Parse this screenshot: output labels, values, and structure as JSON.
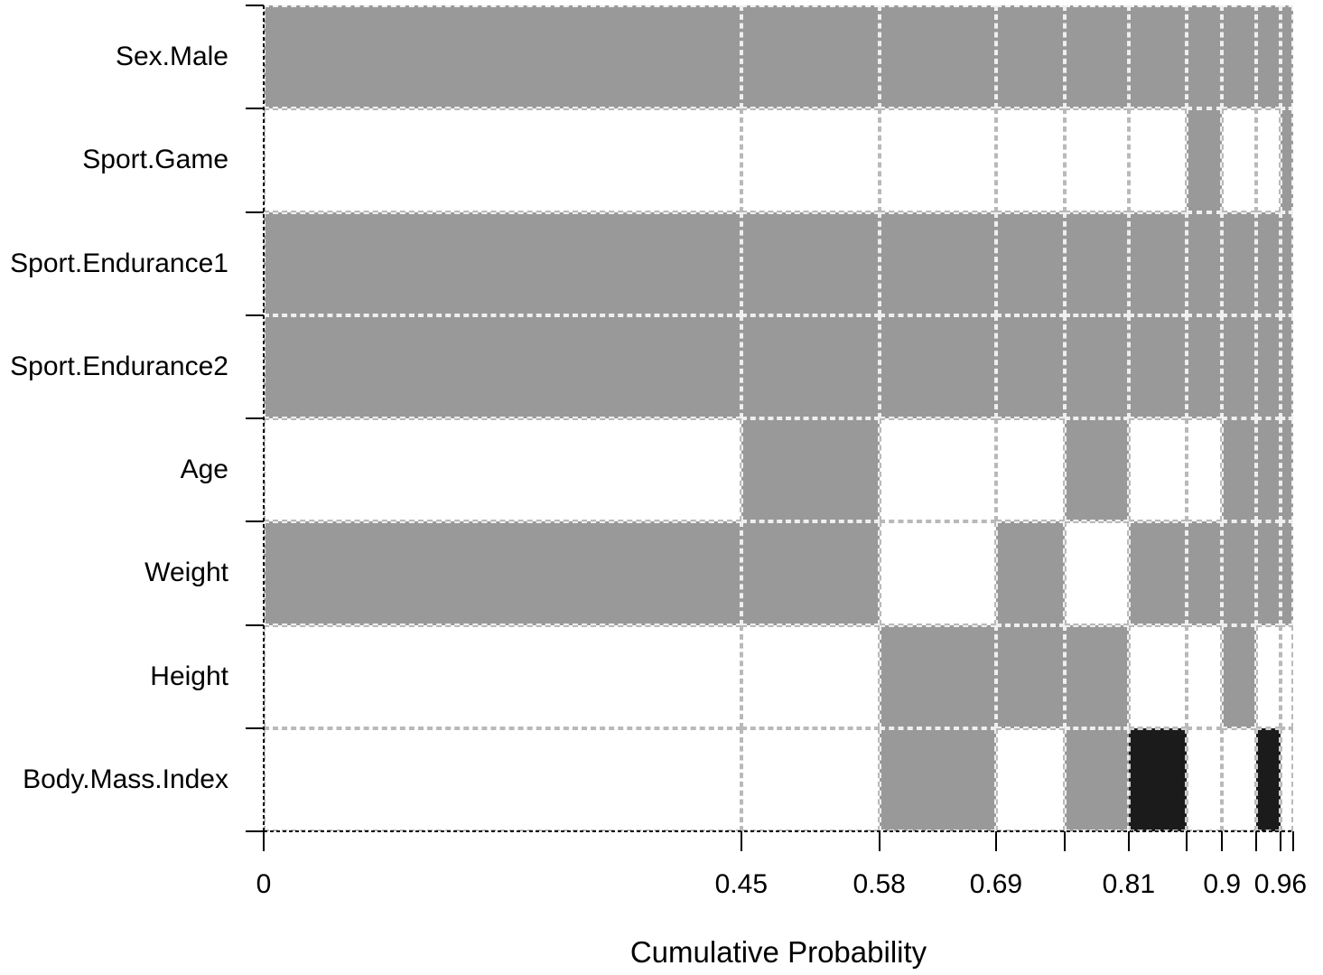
{
  "chart_data": {
    "type": "heatmap",
    "title": "",
    "xlabel": "Cumulative Probability",
    "ylabel": "",
    "x_axis_max": 0.97,
    "grid": "dotted",
    "legend": "none",
    "model_boundaries_cumulative": [
      0,
      0.45,
      0.58,
      0.69,
      0.755,
      0.815,
      0.87,
      0.903,
      0.935,
      0.958,
      0.97
    ],
    "model_posterior_probs": [
      0.45,
      0.13,
      0.11,
      0.065,
      0.06,
      0.055,
      0.033,
      0.032,
      0.023,
      0.012
    ],
    "x_ticks": [
      {
        "label": "0",
        "at": 0
      },
      {
        "label": "0.45",
        "at": 0.45
      },
      {
        "label": "0.58",
        "at": 0.58
      },
      {
        "label": "0.69",
        "at": 0.69
      },
      {
        "label": "0.81",
        "at": 0.815
      },
      {
        "label": "0.9",
        "at": 0.903
      },
      {
        "label": "0.96",
        "at": 0.958
      }
    ],
    "unlabeled_x_tick_values": [
      0.755,
      0.87,
      0.935,
      0.97
    ],
    "cell_meaning": {
      "1": "variable included (positive)",
      "-1": "variable included (negative)",
      "0": "variable not included"
    },
    "cell_colors": {
      "1": "#999999",
      "-1": "#1b1b1b",
      "0": "#ffffff"
    },
    "rows": [
      {
        "label": "Sex.Male",
        "cells": [
          1,
          1,
          1,
          1,
          1,
          1,
          1,
          1,
          1,
          1
        ]
      },
      {
        "label": "Sport.Game",
        "cells": [
          0,
          0,
          0,
          0,
          0,
          0,
          1,
          0,
          0,
          1
        ]
      },
      {
        "label": "Sport.Endurance1",
        "cells": [
          1,
          1,
          1,
          1,
          1,
          1,
          1,
          1,
          1,
          1
        ]
      },
      {
        "label": "Sport.Endurance2",
        "cells": [
          1,
          1,
          1,
          1,
          1,
          1,
          1,
          1,
          1,
          1
        ]
      },
      {
        "label": "Age",
        "cells": [
          0,
          1,
          0,
          0,
          1,
          0,
          0,
          1,
          1,
          1
        ]
      },
      {
        "label": "Weight",
        "cells": [
          1,
          1,
          0,
          1,
          0,
          1,
          1,
          1,
          1,
          1
        ]
      },
      {
        "label": "Height",
        "cells": [
          0,
          0,
          1,
          1,
          1,
          0,
          0,
          1,
          0,
          0
        ]
      },
      {
        "label": "Body.Mass.Index",
        "cells": [
          0,
          0,
          1,
          0,
          1,
          -1,
          0,
          0,
          -1,
          0
        ]
      }
    ]
  }
}
